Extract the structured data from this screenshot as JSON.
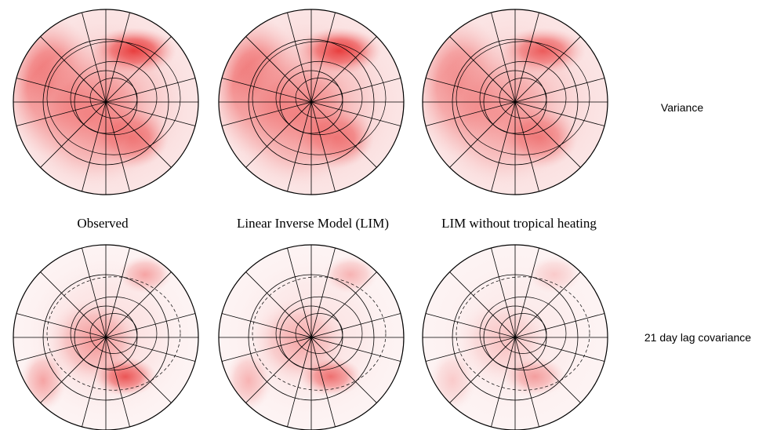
{
  "columns": [
    "Observed",
    "Linear Inverse Model (LIM)",
    "LIM without tropical heating"
  ],
  "rows": [
    "Variance",
    "21 day lag covariance"
  ]
}
